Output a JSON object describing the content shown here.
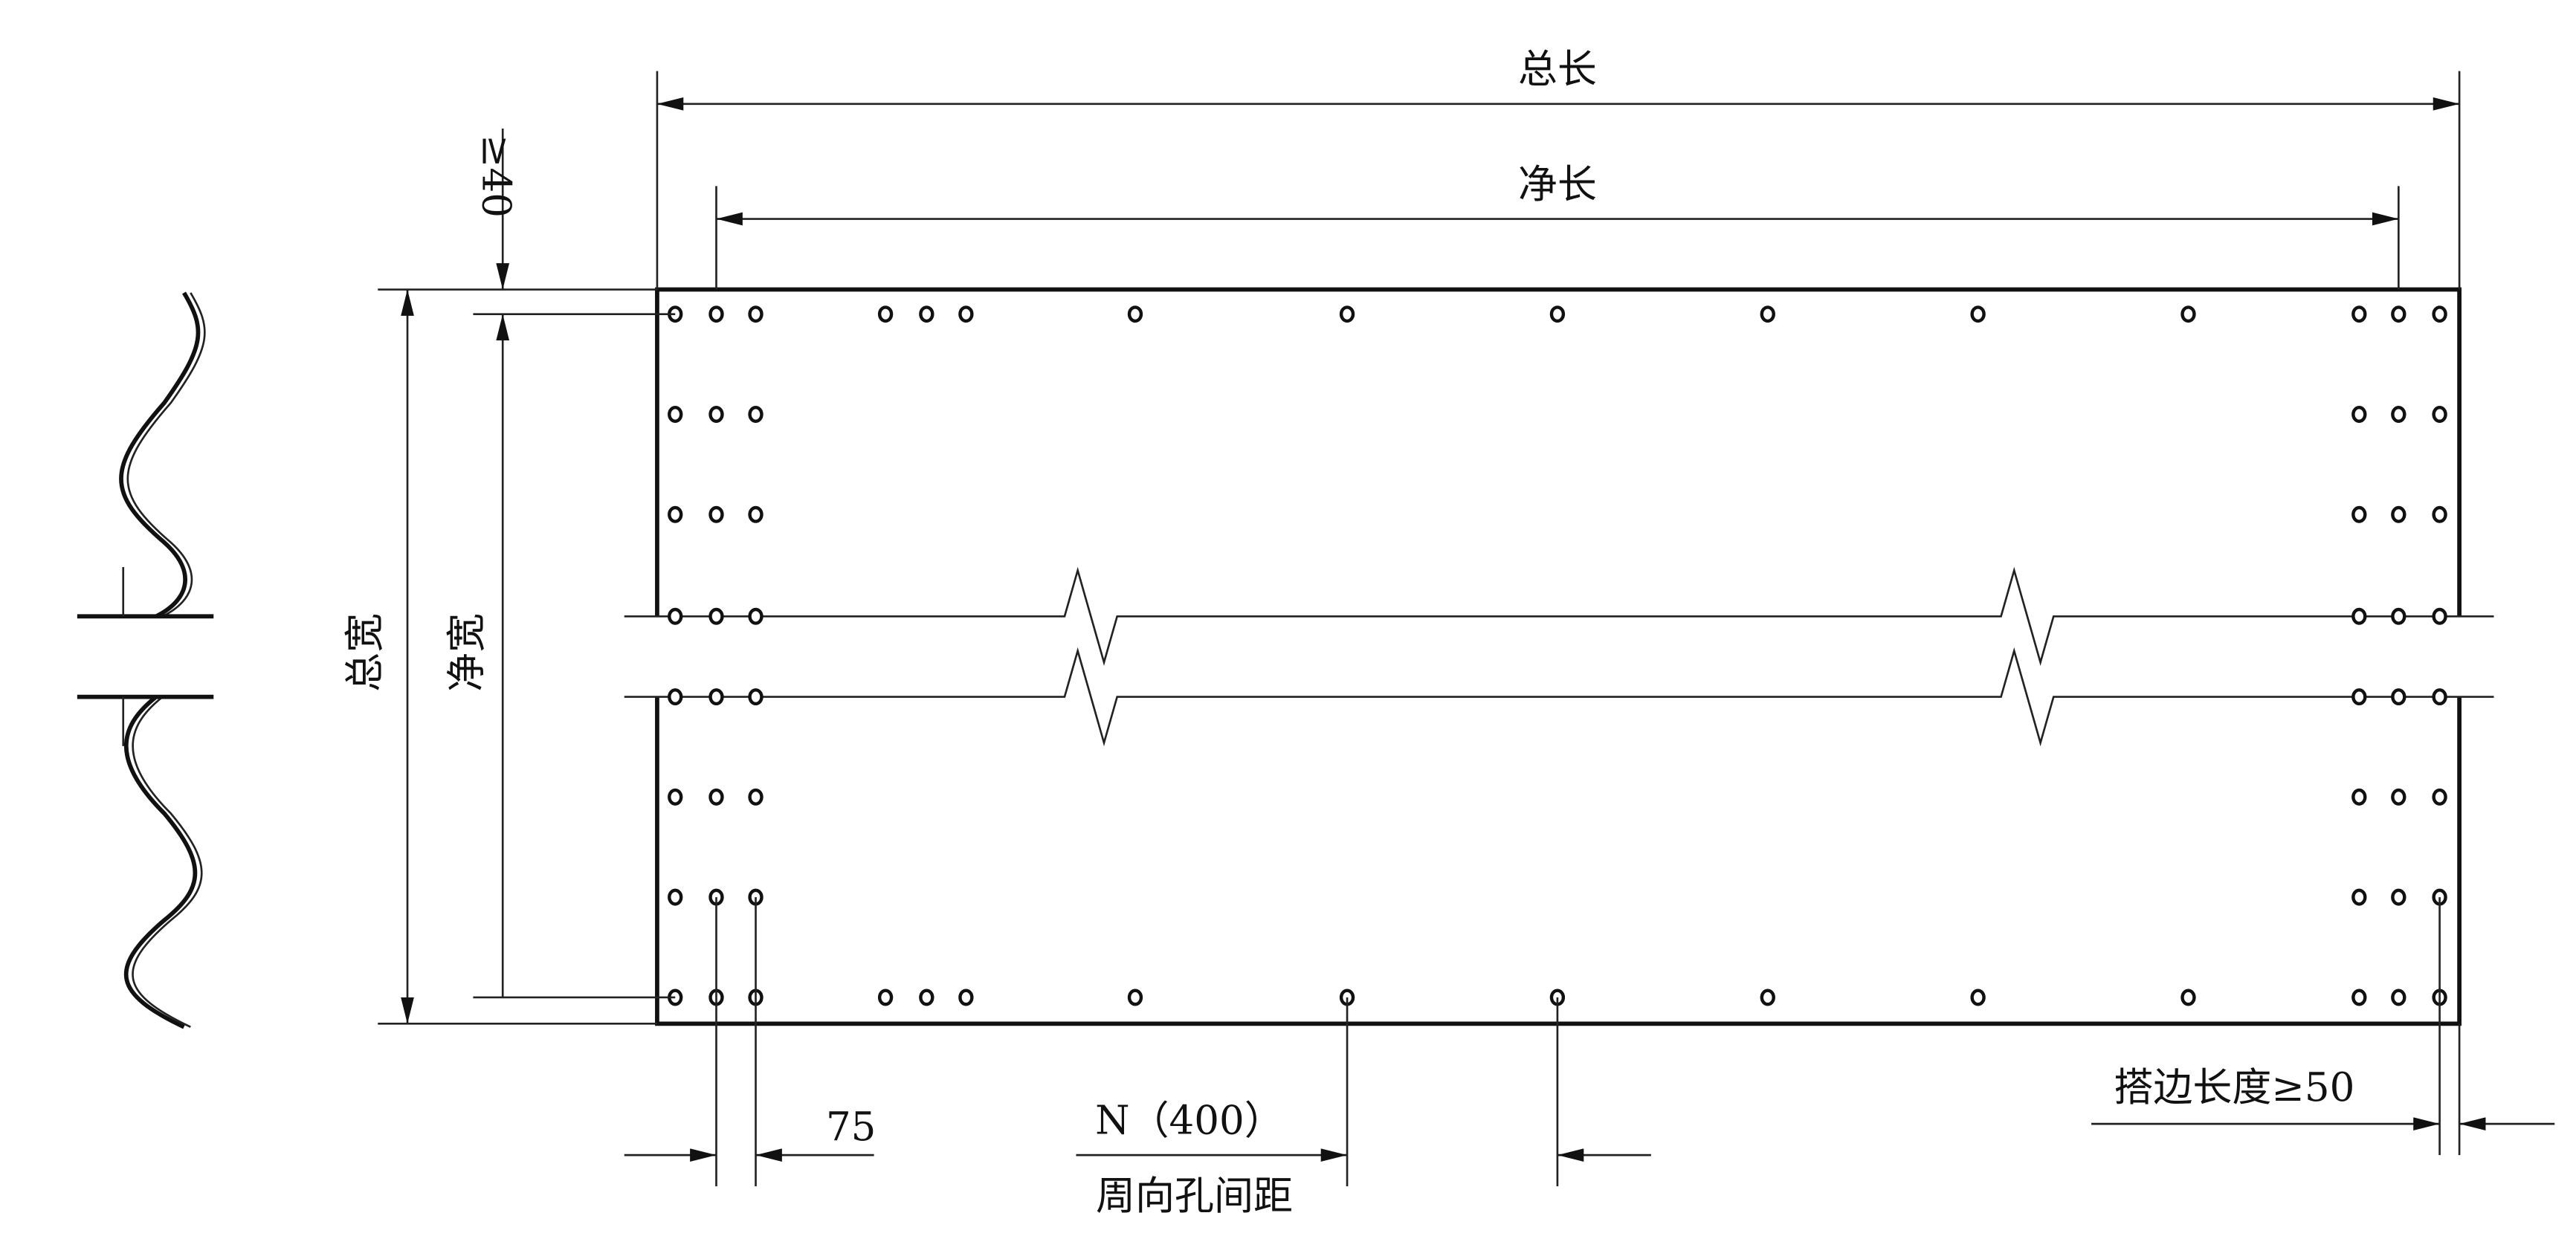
{
  "labels": {
    "total_length": "总长",
    "net_length": "净长",
    "min_edge": "≥40",
    "total_width": "总宽",
    "net_width": "净宽",
    "hole_offset": "75",
    "hole_spacing": "N（400）",
    "hole_spacing_caption": "周向孔间距",
    "overlap": "搭边长度≥50"
  }
}
